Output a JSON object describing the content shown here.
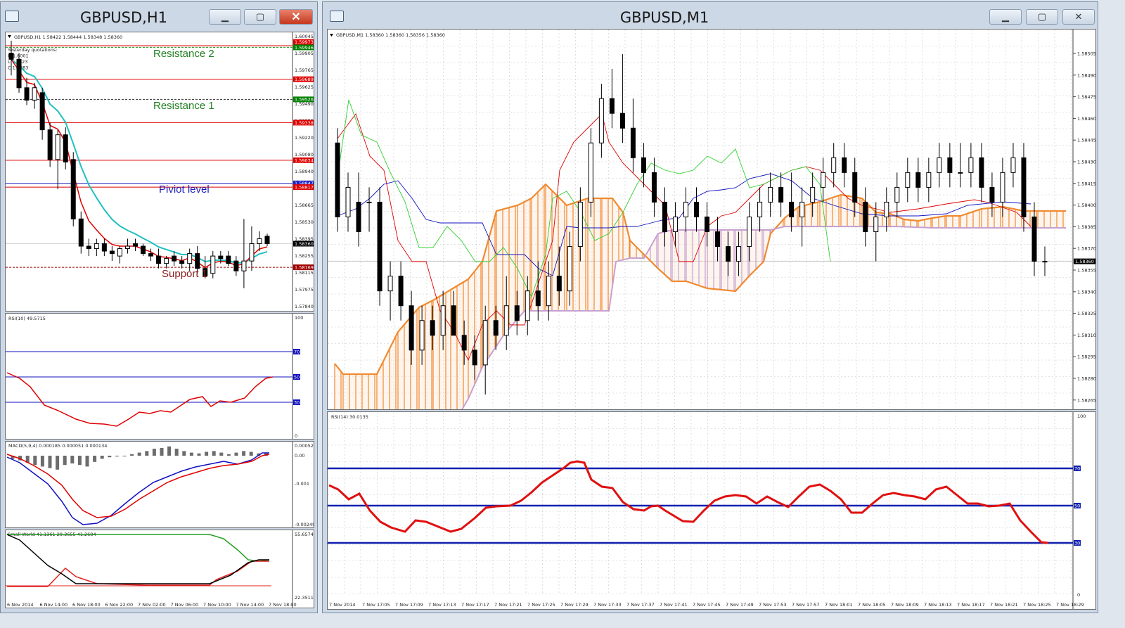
{
  "windows": {
    "left": {
      "title": "GBPUSD,H1",
      "chart_header": "GBPUSD,H1  1.58422 1.58444 1.58348 1.58360",
      "yesterday_box": [
        "Yesterday quotations:",
        "H 1.6001",
        "L 1.5823",
        "C 1.5883"
      ],
      "annotations": {
        "resistance2": "Resistance 2",
        "resistance1": "Resistance 1",
        "pivot": "Piviot level",
        "support1": "Support 1"
      },
      "price_ticks": [
        "1.60045",
        "1.59905",
        "1.59765",
        "1.59625",
        "1.59490",
        "1.59355",
        "1.59220",
        "1.59080",
        "1.58940",
        "1.58805",
        "1.58665",
        "1.58530",
        "1.58395",
        "1.58255",
        "1.58115",
        "1.57975",
        "1.57840"
      ],
      "price_tags": [
        {
          "text": "1.59973",
          "color": "#e00000"
        },
        {
          "text": "1.59946",
          "color": "#008000"
        },
        {
          "text": "1.59689",
          "color": "#e00000"
        },
        {
          "text": "1.59526",
          "color": "#008000"
        },
        {
          "text": "1.59338",
          "color": "#e00000"
        },
        {
          "text": "1.59034",
          "color": "#e00000"
        },
        {
          "text": "1.58847",
          "color": "#2020c0"
        },
        {
          "text": "1.58817",
          "color": "#e00000"
        },
        {
          "text": "1.58360",
          "color": "#000000"
        },
        {
          "text": "1.58169",
          "color": "#a00000"
        }
      ],
      "rsi": {
        "header": "RSI(10) 49.5715",
        "scale": [
          "100",
          "0"
        ],
        "levels": [
          "70",
          "50",
          "30"
        ]
      },
      "macd": {
        "header": "MACD(5,9,4) 0.000185 0.000051 0.000134",
        "scale": [
          "0.000521",
          "0.00",
          "-0.001",
          "-0.002496"
        ]
      },
      "smallworld": {
        "header": "Small World 41.1361 29.3655 41.2684",
        "scale": [
          "55.6574",
          "22.3511"
        ]
      },
      "time_axis": [
        "6 Nov 2014",
        "6 Nov 14:00",
        "6 Nov 18:00",
        "6 Nov 22:00",
        "7 Nov 02:00",
        "7 Nov 06:00",
        "7 Nov 10:00",
        "7 Nov 14:00",
        "7 Nov 18:00"
      ]
    },
    "right": {
      "title": "GBPUSD,M1",
      "chart_header": "GBPUSD,M1  1.58360 1.58360 1.58356 1.58360",
      "price_ticks": [
        "1.58505",
        "1.58490",
        "1.58475",
        "1.58460",
        "1.58445",
        "1.58430",
        "1.58415",
        "1.58400",
        "1.58385",
        "1.58370",
        "1.58355",
        "1.58340",
        "1.58325",
        "1.58310",
        "1.58295",
        "1.58280",
        "1.58265"
      ],
      "current_price": "1.58360",
      "rsi": {
        "header": "RSI(14) 30.0135",
        "scale": [
          "100",
          "0"
        ],
        "levels": [
          "70",
          "50",
          "30"
        ]
      },
      "time_axis": [
        "7 Nov 2014",
        "7 Nov 17:05",
        "7 Nov 17:09",
        "7 Nov 17:13",
        "7 Nov 17:17",
        "7 Nov 17:21",
        "7 Nov 17:25",
        "7 Nov 17:29",
        "7 Nov 17:33",
        "7 Nov 17:37",
        "7 Nov 17:41",
        "7 Nov 17:45",
        "7 Nov 17:49",
        "7 Nov 17:53",
        "7 Nov 17:57",
        "7 Nov 18:01",
        "7 Nov 18:05",
        "7 Nov 18:09",
        "7 Nov 18:13",
        "7 Nov 18:17",
        "7 Nov 18:21",
        "7 Nov 18:25",
        "7 Nov 18:29"
      ]
    }
  },
  "colors": {
    "bull": "#ffffff",
    "bear": "#000000",
    "red": "#e00000",
    "teal": "#20c0c0",
    "blue": "#1010c0",
    "orange": "#f08a30",
    "lilac": "#c8a0d0",
    "green": "#20a020"
  },
  "chart_data": [
    {
      "type": "candlestick",
      "title": "GBPUSD,H1",
      "ylim": [
        1.5784,
        1.60045
      ],
      "candles": [
        [
          1.599,
          1.6,
          1.5972,
          1.5985
        ],
        [
          1.5985,
          1.599,
          1.5958,
          1.5962
        ],
        [
          1.5962,
          1.597,
          1.5948,
          1.5952
        ],
        [
          1.5952,
          1.5966,
          1.5945,
          1.5962
        ],
        [
          1.5958,
          1.5962,
          1.592,
          1.5928
        ],
        [
          1.5928,
          1.5934,
          1.5898,
          1.5904
        ],
        [
          1.5904,
          1.5928,
          1.588,
          1.5924
        ],
        [
          1.5924,
          1.593,
          1.5896,
          1.5902
        ],
        [
          1.5904,
          1.591,
          1.585,
          1.5856
        ],
        [
          1.5856,
          1.5862,
          1.5828,
          1.5834
        ],
        [
          1.5834,
          1.584,
          1.5826,
          1.5832
        ],
        [
          1.5832,
          1.584,
          1.5826,
          1.5836
        ],
        [
          1.5836,
          1.584,
          1.5826,
          1.583
        ],
        [
          1.583,
          1.5834,
          1.5822,
          1.5828
        ],
        [
          1.5826,
          1.5834,
          1.582,
          1.5832
        ],
        [
          1.5832,
          1.584,
          1.5828,
          1.5834
        ],
        [
          1.5836,
          1.584,
          1.583,
          1.5834
        ],
        [
          1.5834,
          1.5836,
          1.5826,
          1.5828
        ],
        [
          1.5828,
          1.5832,
          1.5822,
          1.5826
        ],
        [
          1.5826,
          1.5832,
          1.5816,
          1.582
        ],
        [
          1.582,
          1.5826,
          1.5816,
          1.5824
        ],
        [
          1.5826,
          1.583,
          1.5818,
          1.5822
        ],
        [
          1.5822,
          1.5826,
          1.5816,
          1.582
        ],
        [
          1.582,
          1.5832,
          1.5814,
          1.5828
        ],
        [
          1.5828,
          1.5834,
          1.5812,
          1.5816
        ],
        [
          1.5816,
          1.5826,
          1.5808,
          1.581
        ],
        [
          1.5812,
          1.583,
          1.5808,
          1.5826
        ],
        [
          1.5826,
          1.583,
          1.582,
          1.5824
        ],
        [
          1.5826,
          1.583,
          1.5818,
          1.582
        ],
        [
          1.5822,
          1.5826,
          1.581,
          1.5814
        ],
        [
          1.5814,
          1.5856,
          1.58,
          1.5822
        ],
        [
          1.5822,
          1.585,
          1.5814,
          1.5836
        ],
        [
          1.5836,
          1.5846,
          1.583,
          1.584
        ],
        [
          1.5842,
          1.5844,
          1.5834,
          1.5836
        ]
      ]
    },
    {
      "type": "candlestick",
      "title": "GBPUSD,M1",
      "ylim": [
        1.5826,
        1.5851
      ],
      "candles": [
        [
          1.5844,
          1.5845,
          1.5838,
          1.5839
        ],
        [
          1.5839,
          1.5842,
          1.5838,
          1.5841
        ],
        [
          1.584,
          1.5842,
          1.5837,
          1.5838
        ],
        [
          1.584,
          1.5841,
          1.5838,
          1.584
        ],
        [
          1.584,
          1.5841,
          1.5833,
          1.5834
        ],
        [
          1.5834,
          1.5836,
          1.5832,
          1.5835
        ],
        [
          1.5835,
          1.5836,
          1.5832,
          1.5833
        ],
        [
          1.5833,
          1.5834,
          1.5829,
          1.583
        ],
        [
          1.583,
          1.5833,
          1.5829,
          1.5832
        ],
        [
          1.5832,
          1.5833,
          1.583,
          1.5831
        ],
        [
          1.5831,
          1.5834,
          1.583,
          1.5833
        ],
        [
          1.5833,
          1.5834,
          1.5831,
          1.5831
        ],
        [
          1.5831,
          1.5832,
          1.5829,
          1.583
        ],
        [
          1.583,
          1.5831,
          1.5828,
          1.5829
        ],
        [
          1.5829,
          1.5833,
          1.5827,
          1.5832
        ],
        [
          1.5832,
          1.5833,
          1.583,
          1.5831
        ],
        [
          1.5831,
          1.5835,
          1.583,
          1.5833
        ],
        [
          1.5833,
          1.5834,
          1.5831,
          1.5832
        ],
        [
          1.5832,
          1.5835,
          1.5831,
          1.5834
        ],
        [
          1.5834,
          1.5836,
          1.5832,
          1.5833
        ],
        [
          1.5833,
          1.5836,
          1.5832,
          1.5835
        ],
        [
          1.5835,
          1.5837,
          1.5833,
          1.5834
        ],
        [
          1.5834,
          1.5838,
          1.5833,
          1.5837
        ],
        [
          1.5837,
          1.5841,
          1.5836,
          1.584
        ],
        [
          1.584,
          1.5845,
          1.5839,
          1.5844
        ],
        [
          1.5844,
          1.5848,
          1.5843,
          1.5847
        ],
        [
          1.5847,
          1.5849,
          1.5845,
          1.5846
        ],
        [
          1.5846,
          1.585,
          1.5844,
          1.5845
        ],
        [
          1.5845,
          1.5847,
          1.5842,
          1.5843
        ],
        [
          1.5843,
          1.5844,
          1.5841,
          1.5842
        ],
        [
          1.5842,
          1.5843,
          1.5839,
          1.584
        ],
        [
          1.584,
          1.5841,
          1.5837,
          1.5838
        ],
        [
          1.5838,
          1.584,
          1.5837,
          1.5839
        ],
        [
          1.5839,
          1.5841,
          1.5838,
          1.584
        ],
        [
          1.584,
          1.5841,
          1.5838,
          1.5839
        ],
        [
          1.5839,
          1.584,
          1.5837,
          1.5838
        ],
        [
          1.5838,
          1.5839,
          1.5836,
          1.5837
        ],
        [
          1.5837,
          1.5838,
          1.5835,
          1.5836
        ],
        [
          1.5836,
          1.5838,
          1.5835,
          1.5837
        ],
        [
          1.5837,
          1.584,
          1.5836,
          1.5839
        ],
        [
          1.5839,
          1.5841,
          1.5838,
          1.584
        ],
        [
          1.584,
          1.5842,
          1.5839,
          1.5841
        ],
        [
          1.5841,
          1.5842,
          1.5839,
          1.584
        ],
        [
          1.584,
          1.5842,
          1.5838,
          1.5839
        ],
        [
          1.5839,
          1.5841,
          1.5837,
          1.584
        ],
        [
          1.584,
          1.5842,
          1.5839,
          1.5841
        ],
        [
          1.5841,
          1.5843,
          1.584,
          1.5842
        ],
        [
          1.5842,
          1.5844,
          1.5841,
          1.5843
        ],
        [
          1.5843,
          1.5844,
          1.5841,
          1.5842
        ],
        [
          1.5842,
          1.5843,
          1.5839,
          1.584
        ],
        [
          1.584,
          1.5841,
          1.5837,
          1.5838
        ],
        [
          1.5838,
          1.584,
          1.5836,
          1.5839
        ],
        [
          1.5839,
          1.5841,
          1.5838,
          1.584
        ],
        [
          1.584,
          1.5842,
          1.5839,
          1.5841
        ],
        [
          1.5841,
          1.5843,
          1.584,
          1.5842
        ],
        [
          1.5842,
          1.5843,
          1.584,
          1.5841
        ],
        [
          1.5841,
          1.5843,
          1.584,
          1.5842
        ],
        [
          1.5842,
          1.5844,
          1.5841,
          1.5843
        ],
        [
          1.5843,
          1.5844,
          1.5841,
          1.5842
        ],
        [
          1.5842,
          1.5844,
          1.5841,
          1.5842
        ],
        [
          1.5842,
          1.5844,
          1.5841,
          1.5843
        ],
        [
          1.5843,
          1.5844,
          1.584,
          1.5841
        ],
        [
          1.5841,
          1.5842,
          1.5839,
          1.584
        ],
        [
          1.584,
          1.5843,
          1.5839,
          1.5842
        ],
        [
          1.5842,
          1.5844,
          1.5841,
          1.5843
        ],
        [
          1.5843,
          1.5844,
          1.5838,
          1.5839
        ],
        [
          1.5839,
          1.584,
          1.5835,
          1.5836
        ],
        [
          1.5836,
          1.5837,
          1.5835,
          1.5836
        ]
      ]
    }
  ]
}
